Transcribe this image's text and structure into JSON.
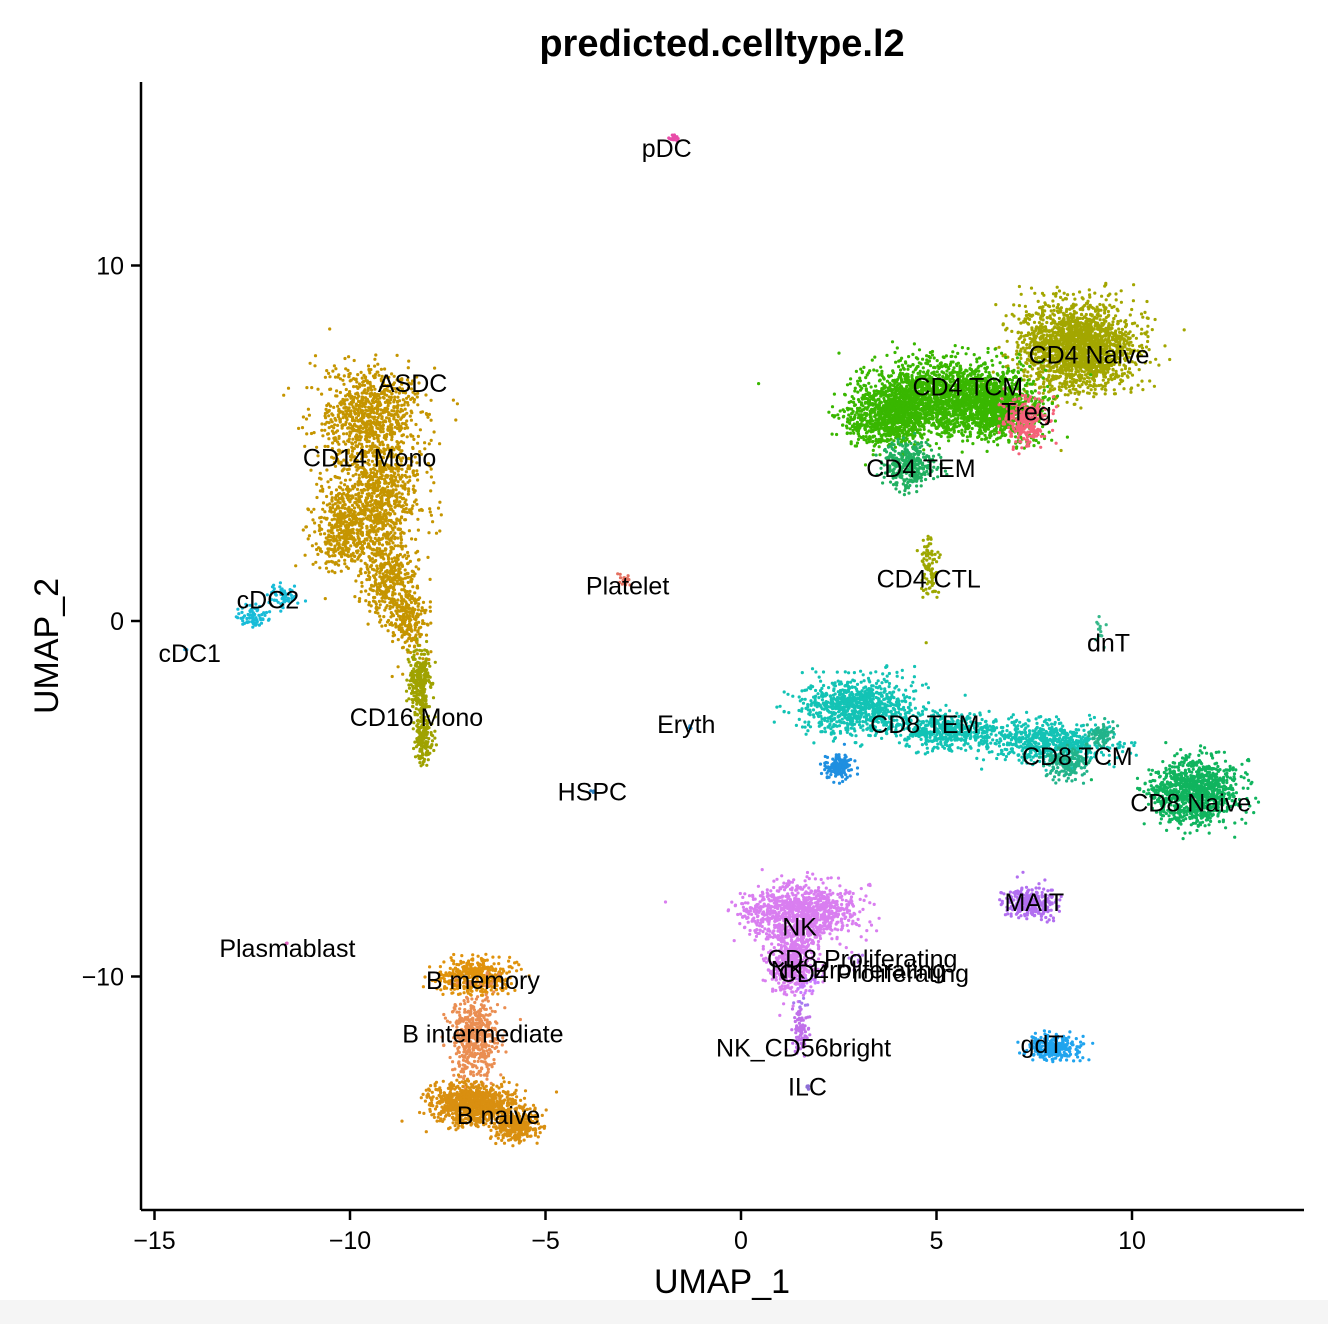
{
  "chart_data": {
    "type": "scatter",
    "title": "predicted.celltype.l2",
    "xlabel": "UMAP_1",
    "ylabel": "UMAP_2",
    "xlim": [
      -15.5,
      14.2
    ],
    "ylim": [
      -16.5,
      15
    ],
    "x_ticks": [
      -15,
      -10,
      -5,
      0,
      5,
      10
    ],
    "y_ticks": [
      -10,
      0,
      10
    ],
    "x_tick_labels": [
      "−15",
      "−10",
      "−5",
      "0",
      "5",
      "10"
    ],
    "y_tick_labels": [
      "−10",
      "0",
      "10"
    ],
    "grid": false,
    "legend": "none",
    "clusters": [
      {
        "name": "pDC",
        "color": "#e84ca8",
        "label_x": -1.9,
        "label_y": 13.3,
        "n": 18,
        "shape": [
          [
            -1.7,
            13.6,
            0.12,
            0.12
          ]
        ]
      },
      {
        "name": "ASDC",
        "color": "#c2a000",
        "label_x": -8.4,
        "label_y": 6.7,
        "n": 0,
        "shape": []
      },
      {
        "name": "CD14 Mono",
        "color": "#c59500",
        "label_x": -9.5,
        "label_y": 4.6,
        "n": 2600,
        "shape": [
          [
            -9.5,
            5.7,
            1.2,
            1.3
          ],
          [
            -9.3,
            3.5,
            1.0,
            1.4
          ],
          [
            -10.2,
            2.5,
            0.7,
            1.0
          ],
          [
            -9.0,
            1.3,
            0.6,
            1.2
          ],
          [
            -8.5,
            0.0,
            0.4,
            1.0
          ]
        ]
      },
      {
        "name": "CD16 Mono",
        "color": "#9fa200",
        "label_x": -8.3,
        "label_y": -2.7,
        "n": 420,
        "shape": [
          [
            -8.2,
            -1.8,
            0.25,
            0.9
          ],
          [
            -8.1,
            -3.3,
            0.2,
            0.6
          ]
        ]
      },
      {
        "name": "cDC2",
        "color": "#19bcd8",
        "label_x": -12.1,
        "label_y": 0.6,
        "n": 140,
        "shape": [
          [
            -12.5,
            0.1,
            0.35,
            0.35
          ],
          [
            -11.7,
            0.7,
            0.35,
            0.3
          ]
        ]
      },
      {
        "name": "cDC1",
        "color": "#2aa8e0",
        "label_x": -14.1,
        "label_y": -0.9,
        "n": 2,
        "shape": [
          [
            -14.2,
            -0.8,
            0.05,
            0.05
          ]
        ]
      },
      {
        "name": "Platelet",
        "color": "#e47060",
        "label_x": -2.9,
        "label_y": 1.0,
        "n": 18,
        "shape": [
          [
            -3.0,
            1.2,
            0.15,
            0.18
          ]
        ]
      },
      {
        "name": "Eryth",
        "color": "#1f8ccf",
        "label_x": -1.4,
        "label_y": -2.9,
        "n": 4,
        "shape": [
          [
            -1.3,
            -3.0,
            0.05,
            0.05
          ]
        ]
      },
      {
        "name": "HSPC",
        "color": "#2f80c0",
        "label_x": -3.8,
        "label_y": -4.8,
        "n": 4,
        "shape": [
          [
            -3.8,
            -4.8,
            0.05,
            0.05
          ]
        ]
      },
      {
        "name": "Plasmablast",
        "color": "#e065c0",
        "label_x": -11.6,
        "label_y": -9.2,
        "n": 3,
        "shape": [
          [
            -11.6,
            -9.1,
            0.06,
            0.06
          ]
        ]
      },
      {
        "name": "B memory",
        "color": "#e0920c",
        "label_x": -6.6,
        "label_y": -10.1,
        "n": 420,
        "shape": [
          [
            -6.8,
            -10.0,
            0.8,
            0.45
          ]
        ]
      },
      {
        "name": "B intermediate",
        "color": "#ea8e52",
        "label_x": -6.6,
        "label_y": -11.6,
        "n": 520,
        "shape": [
          [
            -6.8,
            -11.7,
            0.55,
            1.1
          ]
        ]
      },
      {
        "name": "B naive",
        "color": "#d98f10",
        "label_x": -6.2,
        "label_y": -13.9,
        "n": 1300,
        "shape": [
          [
            -6.8,
            -13.6,
            1.0,
            0.5
          ],
          [
            -5.8,
            -14.2,
            0.5,
            0.35
          ]
        ]
      },
      {
        "name": "NK",
        "color": "#d97ef0",
        "label_x": 1.5,
        "label_y": -8.6,
        "n": 1500,
        "shape": [
          [
            1.5,
            -8.2,
            1.3,
            0.7
          ],
          [
            1.3,
            -9.6,
            0.5,
            0.8
          ]
        ]
      },
      {
        "name": "NK Proliferating",
        "color": "#c77cff",
        "label_x": 3.0,
        "label_y": -9.8,
        "n": 25,
        "shape": [
          [
            1.7,
            -10.2,
            0.3,
            0.3
          ]
        ]
      },
      {
        "name": "CD8 Proliferating",
        "color": "#b87cf0",
        "label_x": 3.1,
        "label_y": -9.5,
        "n": 10,
        "shape": [
          [
            2.9,
            -9.6,
            0.3,
            0.2
          ]
        ]
      },
      {
        "name": "CD4 Proliferating",
        "color": "#a77af0",
        "label_x": 3.4,
        "label_y": -9.9,
        "n": 8,
        "shape": [
          [
            1.5,
            -10.8,
            0.2,
            0.2
          ]
        ]
      },
      {
        "name": "NK_CD56bright",
        "color": "#c070ea",
        "label_x": 1.6,
        "label_y": -12.0,
        "n": 90,
        "shape": [
          [
            1.5,
            -11.5,
            0.2,
            0.6
          ]
        ]
      },
      {
        "name": "ILC",
        "color": "#8e6fd6",
        "label_x": 1.7,
        "label_y": -13.1,
        "n": 6,
        "shape": [
          [
            1.7,
            -13.1,
            0.05,
            0.05
          ]
        ]
      },
      {
        "name": "MAIT",
        "color": "#b26ff0",
        "label_x": 7.5,
        "label_y": -7.9,
        "n": 260,
        "shape": [
          [
            7.4,
            -7.9,
            0.6,
            0.4
          ]
        ]
      },
      {
        "name": "gdT",
        "color": "#20a4ee",
        "label_x": 7.7,
        "label_y": -11.9,
        "n": 280,
        "shape": [
          [
            8.0,
            -12.0,
            0.6,
            0.3
          ]
        ]
      },
      {
        "name": "CD4 Naive",
        "color": "#a3a600",
        "label_x": 8.9,
        "label_y": 7.5,
        "n": 2000,
        "shape": [
          [
            8.6,
            7.7,
            1.3,
            1.1
          ]
        ]
      },
      {
        "name": "CD4 TCM",
        "color": "#39b700",
        "label_x": 5.8,
        "label_y": 6.6,
        "n": 3400,
        "shape": [
          [
            5.2,
            6.3,
            1.8,
            0.9
          ],
          [
            3.8,
            5.7,
            1.0,
            0.7
          ],
          [
            6.6,
            6.0,
            0.9,
            0.8
          ]
        ]
      },
      {
        "name": "Treg",
        "color": "#f5627a",
        "label_x": 7.3,
        "label_y": 5.9,
        "n": 280,
        "shape": [
          [
            7.3,
            5.6,
            0.5,
            0.6
          ]
        ]
      },
      {
        "name": "CD4 TEM",
        "color": "#20b060",
        "label_x": 4.6,
        "label_y": 4.3,
        "n": 350,
        "shape": [
          [
            4.3,
            4.4,
            0.6,
            0.6
          ]
        ]
      },
      {
        "name": "CD4 CTL",
        "color": "#9da700",
        "label_x": 4.8,
        "label_y": 1.2,
        "n": 90,
        "shape": [
          [
            4.8,
            1.5,
            0.2,
            0.8
          ]
        ]
      },
      {
        "name": "dnT",
        "color": "#36b88a",
        "label_x": 9.4,
        "label_y": -0.6,
        "n": 14,
        "shape": [
          [
            9.2,
            -0.4,
            0.1,
            0.4
          ]
        ]
      },
      {
        "name": "CD8 TEM",
        "color": "#13c3b5",
        "label_x": 4.7,
        "label_y": -2.9,
        "n": 2000,
        "shape": [
          [
            3.0,
            -2.4,
            1.3,
            0.7
          ],
          [
            5.3,
            -3.1,
            1.2,
            0.45
          ],
          [
            7.9,
            -3.4,
            1.4,
            0.5
          ]
        ]
      },
      {
        "name": "CD8 TCM",
        "color": "#22b38a",
        "label_x": 8.6,
        "label_y": -3.8,
        "n": 250,
        "shape": [
          [
            9.2,
            -3.2,
            0.3,
            0.3
          ],
          [
            8.3,
            -4.0,
            0.5,
            0.4
          ]
        ]
      },
      {
        "name": "CD8 Naive",
        "color": "#10b45e",
        "label_x": 11.5,
        "label_y": -5.1,
        "n": 1100,
        "shape": [
          [
            11.6,
            -4.8,
            1.0,
            0.8
          ]
        ]
      },
      {
        "name": "CD8 TEM (blue)",
        "color": "#1f8fe0",
        "label_x": null,
        "label_y": null,
        "n": 150,
        "shape": [
          [
            2.5,
            -4.1,
            0.3,
            0.3
          ]
        ]
      }
    ]
  }
}
